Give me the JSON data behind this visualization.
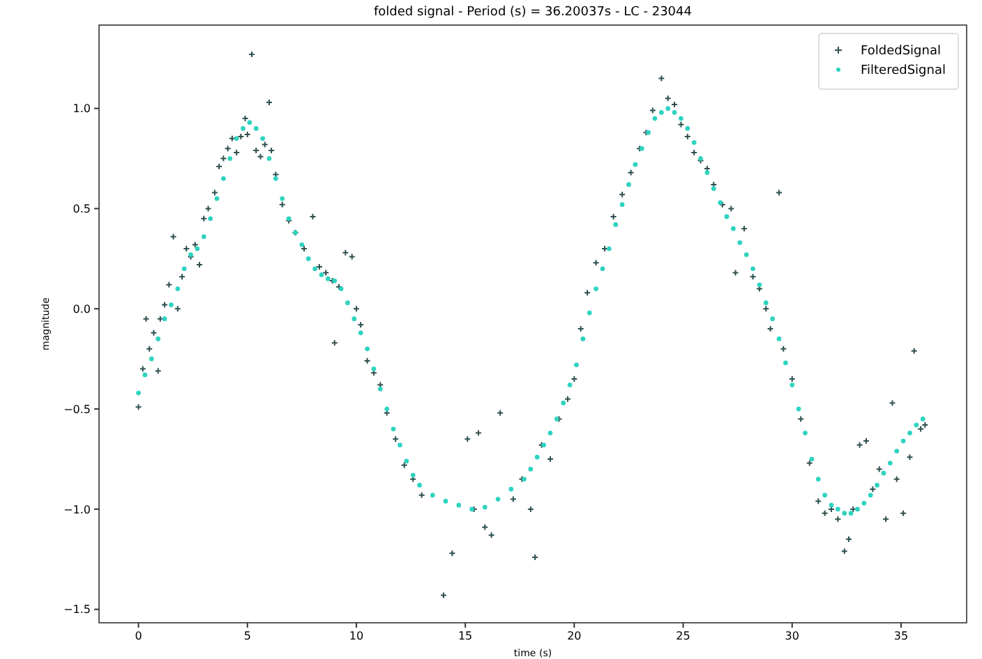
{
  "chart_data": {
    "type": "scatter",
    "title": "folded signal - Period (s) = 36.20037s - LC -  23044",
    "xlabel": "time (s)",
    "ylabel": "magnitude",
    "xlim": [
      -1.81,
      38.01
    ],
    "ylim": [
      -1.567,
      1.416
    ],
    "xticks": [
      0,
      5,
      10,
      15,
      20,
      25,
      30,
      35
    ],
    "yticks": [
      {
        "value": -1.5,
        "label": "−1.5"
      },
      {
        "value": -1,
        "label": "−1.0"
      },
      {
        "value": -0.5,
        "label": "−0.5"
      },
      {
        "value": 0,
        "label": "0.0"
      },
      {
        "value": 0.5,
        "label": "0.5"
      },
      {
        "value": 1,
        "label": "1.0"
      }
    ],
    "grid": false,
    "legend": "top right",
    "series": [
      {
        "name": "FoldedSignal",
        "color": "#2f4f4f",
        "marker": "cross",
        "x": [
          0.0,
          0.2,
          0.35,
          0.5,
          0.7,
          0.9,
          1.0,
          1.2,
          1.4,
          1.6,
          1.8,
          2.0,
          2.2,
          2.4,
          2.6,
          2.8,
          3.0,
          3.2,
          3.5,
          3.7,
          3.9,
          4.1,
          4.3,
          4.5,
          4.7,
          4.9,
          5.0,
          5.2,
          5.4,
          5.6,
          5.8,
          6.0,
          6.1,
          6.3,
          6.6,
          6.9,
          7.2,
          7.6,
          8.0,
          8.3,
          8.6,
          8.9,
          9.0,
          9.2,
          9.5,
          9.8,
          10.0,
          10.2,
          10.5,
          10.8,
          11.1,
          11.4,
          11.8,
          12.2,
          12.6,
          13.0,
          14.0,
          14.4,
          15.1,
          15.4,
          15.6,
          15.9,
          16.2,
          16.6,
          17.2,
          17.6,
          18.0,
          18.2,
          18.5,
          18.9,
          19.3,
          19.7,
          20.0,
          20.3,
          20.6,
          21.0,
          21.4,
          21.8,
          22.2,
          22.6,
          23.0,
          23.3,
          23.6,
          24.0,
          24.3,
          24.6,
          24.9,
          25.2,
          25.5,
          25.8,
          26.1,
          26.4,
          26.8,
          27.2,
          27.4,
          27.8,
          28.2,
          28.5,
          28.8,
          29.4,
          29.0,
          29.6,
          30.0,
          30.4,
          30.8,
          31.2,
          31.5,
          31.8,
          32.1,
          32.4,
          32.6,
          32.8,
          33.1,
          33.4,
          33.7,
          34.0,
          34.3,
          34.6,
          34.8,
          35.1,
          35.4,
          35.6,
          35.9,
          36.1
        ],
        "values": [
          -0.49,
          -0.3,
          -0.05,
          -0.2,
          -0.12,
          -0.31,
          -0.05,
          0.02,
          0.12,
          0.36,
          0.0,
          0.16,
          0.3,
          0.26,
          0.32,
          0.22,
          0.45,
          0.5,
          0.58,
          0.71,
          0.75,
          0.8,
          0.85,
          0.78,
          0.86,
          0.95,
          0.87,
          1.27,
          0.79,
          0.76,
          0.82,
          1.03,
          0.79,
          0.67,
          0.52,
          0.44,
          0.38,
          0.3,
          0.46,
          0.21,
          0.18,
          0.14,
          -0.17,
          0.11,
          0.28,
          0.26,
          0.0,
          -0.08,
          -0.26,
          -0.32,
          -0.38,
          -0.52,
          -0.65,
          -0.78,
          -0.85,
          -0.93,
          -1.43,
          -1.22,
          -0.65,
          -1.0,
          -0.62,
          -1.09,
          -1.13,
          -0.52,
          -0.95,
          -0.85,
          -1.0,
          -1.24,
          -0.68,
          -0.75,
          -0.55,
          -0.45,
          -0.35,
          -0.1,
          0.08,
          0.23,
          0.3,
          0.46,
          0.57,
          0.68,
          0.8,
          0.88,
          0.99,
          1.15,
          1.05,
          1.02,
          0.92,
          0.86,
          0.78,
          0.74,
          0.7,
          0.62,
          0.52,
          0.5,
          0.18,
          0.4,
          0.16,
          0.1,
          0.0,
          0.58,
          -0.1,
          -0.2,
          -0.35,
          -0.55,
          -0.77,
          -0.96,
          -1.02,
          -1.0,
          -1.05,
          -1.21,
          -1.15,
          -1.0,
          -0.68,
          -0.66,
          -0.9,
          -0.8,
          -1.05,
          -0.47,
          -0.85,
          -1.02,
          -0.74,
          -0.21,
          -0.6,
          -0.58
        ]
      },
      {
        "name": "FilteredSignal",
        "color": "#2ed3c0",
        "marker": "circle",
        "x": [
          0.0,
          0.3,
          0.6,
          0.9,
          1.2,
          1.5,
          1.8,
          2.1,
          2.4,
          2.7,
          3.0,
          3.3,
          3.6,
          3.9,
          4.2,
          4.5,
          4.8,
          5.1,
          5.4,
          5.7,
          6.0,
          6.3,
          6.6,
          6.9,
          7.2,
          7.5,
          7.8,
          8.1,
          8.4,
          8.7,
          9.0,
          9.3,
          9.6,
          9.9,
          10.2,
          10.5,
          10.8,
          11.1,
          11.4,
          11.7,
          12.0,
          12.3,
          12.6,
          12.9,
          13.5,
          14.1,
          14.7,
          15.3,
          15.9,
          16.5,
          17.1,
          17.7,
          18.0,
          18.3,
          18.6,
          18.9,
          19.2,
          19.5,
          19.8,
          20.1,
          20.4,
          20.7,
          21.0,
          21.3,
          21.6,
          21.9,
          22.2,
          22.5,
          22.8,
          23.1,
          23.4,
          23.7,
          24.0,
          24.3,
          24.6,
          24.9,
          25.2,
          25.5,
          25.8,
          26.1,
          26.4,
          26.7,
          27.0,
          27.3,
          27.6,
          27.9,
          28.2,
          28.5,
          28.8,
          29.1,
          29.4,
          29.7,
          30.0,
          30.3,
          30.6,
          30.9,
          31.2,
          31.5,
          31.8,
          32.1,
          32.4,
          32.7,
          33.0,
          33.3,
          33.6,
          33.9,
          34.2,
          34.5,
          34.8,
          35.1,
          35.4,
          35.7,
          36.0
        ],
        "values": [
          -0.42,
          -0.33,
          -0.25,
          -0.15,
          -0.05,
          0.02,
          0.1,
          0.2,
          0.27,
          0.3,
          0.36,
          0.45,
          0.55,
          0.65,
          0.75,
          0.85,
          0.9,
          0.93,
          0.9,
          0.85,
          0.75,
          0.65,
          0.55,
          0.45,
          0.38,
          0.32,
          0.25,
          0.2,
          0.17,
          0.15,
          0.14,
          0.1,
          0.03,
          -0.05,
          -0.12,
          -0.2,
          -0.3,
          -0.4,
          -0.5,
          -0.6,
          -0.68,
          -0.76,
          -0.83,
          -0.88,
          -0.93,
          -0.96,
          -0.98,
          -1.0,
          -0.99,
          -0.95,
          -0.9,
          -0.85,
          -0.8,
          -0.74,
          -0.68,
          -0.62,
          -0.55,
          -0.47,
          -0.38,
          -0.28,
          -0.15,
          -0.02,
          0.1,
          0.2,
          0.3,
          0.42,
          0.52,
          0.62,
          0.72,
          0.8,
          0.88,
          0.95,
          0.98,
          1.0,
          0.98,
          0.95,
          0.9,
          0.83,
          0.75,
          0.68,
          0.6,
          0.53,
          0.46,
          0.4,
          0.33,
          0.27,
          0.2,
          0.12,
          0.03,
          -0.05,
          -0.15,
          -0.27,
          -0.38,
          -0.5,
          -0.62,
          -0.75,
          -0.85,
          -0.93,
          -0.98,
          -1.0,
          -1.02,
          -1.02,
          -1.0,
          -0.97,
          -0.93,
          -0.88,
          -0.82,
          -0.77,
          -0.71,
          -0.66,
          -0.62,
          -0.58,
          -0.55
        ]
      }
    ]
  }
}
